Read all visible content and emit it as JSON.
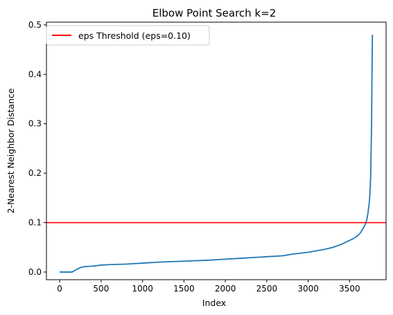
{
  "chart_data": {
    "type": "line",
    "title": "Elbow Point Search k=2",
    "xlabel": "Index",
    "ylabel": "2-Nearest Neighbor Distance",
    "xlim": [
      -160,
      3940
    ],
    "ylim": [
      -0.0155,
      0.5055
    ],
    "xticks": [
      0,
      500,
      1000,
      1500,
      2000,
      2500,
      3000,
      3500
    ],
    "yticks": [
      0.0,
      0.1,
      0.2,
      0.3,
      0.4,
      0.5
    ],
    "grid": false,
    "legend": {
      "placement": "top-left",
      "entries": [
        "eps Threshold (eps=0.10)"
      ]
    },
    "series": [
      {
        "color": "#1f77b4",
        "x": [
          0,
          150,
          170,
          200,
          250,
          300,
          400,
          500,
          600,
          800,
          1000,
          1200,
          1500,
          1800,
          2000,
          2200,
          2500,
          2700,
          2800,
          3000,
          3100,
          3200,
          3300,
          3400,
          3500,
          3550,
          3600,
          3630,
          3650,
          3670,
          3690,
          3700,
          3710,
          3720,
          3730,
          3740,
          3750,
          3755,
          3760,
          3765,
          3770,
          3775
        ],
        "y": [
          0.0,
          0.0,
          0.002,
          0.005,
          0.009,
          0.011,
          0.012,
          0.014,
          0.015,
          0.016,
          0.018,
          0.02,
          0.022,
          0.024,
          0.026,
          0.028,
          0.031,
          0.033,
          0.036,
          0.04,
          0.043,
          0.046,
          0.05,
          0.056,
          0.064,
          0.068,
          0.074,
          0.079,
          0.085,
          0.09,
          0.097,
          0.102,
          0.108,
          0.118,
          0.13,
          0.145,
          0.175,
          0.2,
          0.25,
          0.3,
          0.4,
          0.48
        ]
      }
    ],
    "reference_lines": [
      {
        "orientation": "horizontal",
        "value": 0.1,
        "color": "#ff0000",
        "label": "eps Threshold (eps=0.10)"
      }
    ]
  }
}
